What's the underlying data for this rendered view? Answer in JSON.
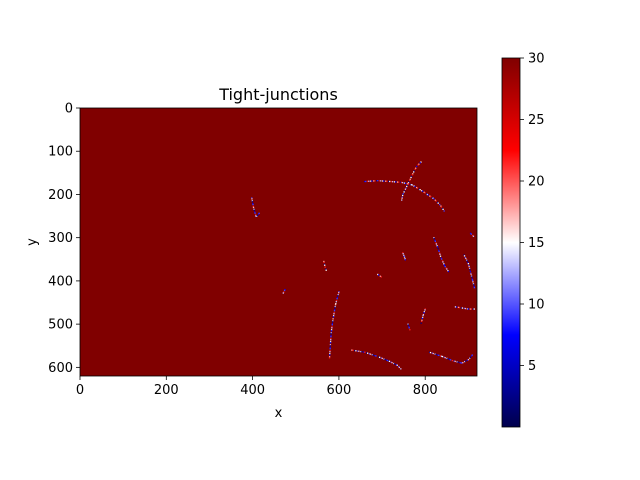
{
  "chart_data": {
    "type": "heatmap",
    "title": "Tight-junctions",
    "xlabel": "x",
    "ylabel": "y",
    "xlim": [
      0,
      920
    ],
    "ylim": [
      620,
      0
    ],
    "x_ticks": [
      0,
      200,
      400,
      600,
      800
    ],
    "y_ticks": [
      0,
      100,
      200,
      300,
      400,
      500,
      600
    ],
    "colormap": "seismic",
    "background_value": 30,
    "colorbar": {
      "range": [
        0,
        30
      ],
      "ticks": [
        5,
        10,
        15,
        20,
        25,
        30
      ]
    },
    "colors": {
      "max": "#800000",
      "upper_mid": "#ff0000",
      "mid": "#ffffff",
      "lower_mid": "#0000ff",
      "min": "#00004c"
    },
    "features": [
      {
        "points": [
          [
            790,
            125
          ],
          [
            780,
            135
          ],
          [
            772,
            150
          ],
          [
            765,
            165
          ],
          [
            760,
            175
          ],
          [
            753,
            190
          ],
          [
            748,
            200
          ],
          [
            745,
            215
          ]
        ]
      },
      {
        "points": [
          [
            660,
            170
          ],
          [
            690,
            168
          ],
          [
            720,
            170
          ],
          [
            745,
            172
          ],
          [
            770,
            178
          ],
          [
            790,
            190
          ],
          [
            805,
            200
          ],
          [
            820,
            210
          ],
          [
            835,
            225
          ],
          [
            845,
            240
          ]
        ]
      },
      {
        "points": [
          [
            398,
            208
          ],
          [
            402,
            230
          ],
          [
            408,
            252
          ],
          [
            418,
            240
          ]
        ]
      },
      {
        "points": [
          [
            565,
            355
          ],
          [
            568,
            368
          ],
          [
            572,
            380
          ]
        ]
      },
      {
        "points": [
          [
            748,
            335
          ],
          [
            752,
            345
          ],
          [
            755,
            355
          ]
        ]
      },
      {
        "points": [
          [
            820,
            300
          ],
          [
            830,
            325
          ],
          [
            836,
            345
          ],
          [
            845,
            365
          ],
          [
            855,
            380
          ]
        ]
      },
      {
        "points": [
          [
            890,
            340
          ],
          [
            900,
            360
          ],
          [
            905,
            380
          ],
          [
            910,
            400
          ],
          [
            915,
            420
          ]
        ]
      },
      {
        "points": [
          [
            690,
            385
          ],
          [
            700,
            392
          ]
        ]
      },
      {
        "points": [
          [
            475,
            420
          ],
          [
            470,
            430
          ]
        ]
      },
      {
        "points": [
          [
            600,
            425
          ],
          [
            592,
            455
          ],
          [
            586,
            490
          ],
          [
            582,
            520
          ],
          [
            580,
            550
          ],
          [
            578,
            580
          ]
        ]
      },
      {
        "points": [
          [
            630,
            560
          ],
          [
            660,
            565
          ],
          [
            690,
            575
          ],
          [
            715,
            585
          ],
          [
            735,
            595
          ],
          [
            745,
            605
          ]
        ]
      },
      {
        "points": [
          [
            800,
            465
          ],
          [
            795,
            480
          ],
          [
            790,
            500
          ]
        ]
      },
      {
        "points": [
          [
            760,
            500
          ],
          [
            765,
            515
          ]
        ]
      },
      {
        "points": [
          [
            810,
            565
          ],
          [
            840,
            575
          ],
          [
            865,
            585
          ],
          [
            885,
            590
          ],
          [
            900,
            582
          ],
          [
            912,
            568
          ]
        ]
      },
      {
        "points": [
          [
            870,
            460
          ],
          [
            900,
            465
          ],
          [
            918,
            465
          ]
        ]
      },
      {
        "points": [
          [
            905,
            290
          ],
          [
            915,
            300
          ]
        ]
      }
    ]
  }
}
